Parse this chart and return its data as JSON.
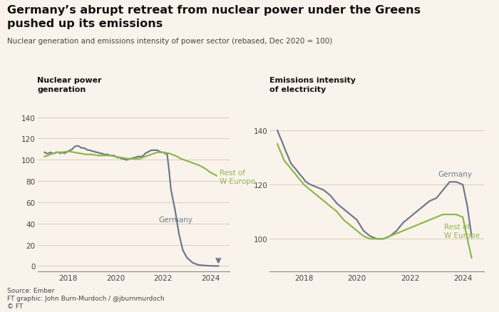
{
  "title_line1": "Germany’s abrupt retreat from nuclear power under the Greens",
  "title_line2": "pushed up its emissions",
  "subtitle": "Nuclear generation and emissions intensity of power sector (rebased, Dec 2020 = 100)",
  "background_color": "#faf3ec",
  "germany_color": "#6b7b8d",
  "europe_color": "#8db84a",
  "left_panel_title": "Nuclear power\ngeneration",
  "right_panel_title": "Emissions intensity\nof electricity",
  "source": "Source: Ember",
  "credit": "FT graphic: John Burn-Murdoch / @jburnmurdoch",
  "copyright": "© FT",
  "ylim_left": [
    -5,
    148
  ],
  "ylim_right": [
    88,
    148
  ],
  "yticks_left": [
    0,
    20,
    40,
    60,
    80,
    100,
    120,
    140
  ],
  "yticks_right": [
    100,
    120,
    140
  ],
  "xticks": [
    2018,
    2020,
    2022,
    2024
  ],
  "left_germany_x": [
    2017.0,
    2017.08,
    2017.17,
    2017.25,
    2017.33,
    2017.42,
    2017.5,
    2017.58,
    2017.67,
    2017.75,
    2017.83,
    2017.92,
    2018.0,
    2018.08,
    2018.17,
    2018.25,
    2018.33,
    2018.42,
    2018.5,
    2018.58,
    2018.67,
    2018.75,
    2018.83,
    2018.92,
    2019.0,
    2019.08,
    2019.17,
    2019.25,
    2019.33,
    2019.42,
    2019.5,
    2019.58,
    2019.67,
    2019.75,
    2019.83,
    2019.92,
    2020.0,
    2020.08,
    2020.17,
    2020.25,
    2020.33,
    2020.42,
    2020.5,
    2020.58,
    2020.67,
    2020.75,
    2020.83,
    2020.92,
    2021.0,
    2021.08,
    2021.17,
    2021.25,
    2021.33,
    2021.42,
    2021.5,
    2021.58,
    2021.67,
    2021.75,
    2021.83,
    2021.92,
    2022.0,
    2022.08,
    2022.17,
    2022.25,
    2022.33,
    2022.5,
    2022.67,
    2022.83,
    2023.0,
    2023.25,
    2023.5,
    2023.75,
    2024.0,
    2024.17,
    2024.33
  ],
  "left_germany_y": [
    107,
    106,
    106,
    107,
    106,
    106,
    107,
    107,
    106,
    107,
    106,
    107,
    108,
    109,
    110,
    112,
    113,
    113,
    112,
    111,
    111,
    110,
    109,
    109,
    108,
    108,
    107,
    107,
    106,
    106,
    105,
    105,
    105,
    104,
    104,
    104,
    103,
    102,
    102,
    101,
    101,
    100,
    100,
    101,
    101,
    102,
    102,
    103,
    103,
    103,
    104,
    106,
    107,
    108,
    109,
    109,
    109,
    109,
    108,
    107,
    107,
    106,
    105,
    90,
    72,
    53,
    30,
    15,
    8,
    3,
    1,
    0.5,
    0.2,
    0.1,
    0
  ],
  "left_europe_x": [
    2017.0,
    2017.25,
    2017.5,
    2017.75,
    2018.0,
    2018.25,
    2018.5,
    2018.75,
    2019.0,
    2019.25,
    2019.5,
    2019.75,
    2020.0,
    2020.25,
    2020.5,
    2020.75,
    2021.0,
    2021.25,
    2021.5,
    2021.75,
    2022.0,
    2022.25,
    2022.5,
    2022.75,
    2023.0,
    2023.25,
    2023.5,
    2023.75,
    2024.0,
    2024.25
  ],
  "left_europe_y": [
    103,
    105,
    107,
    107,
    108,
    107,
    106,
    105,
    105,
    104,
    104,
    104,
    103,
    102,
    101,
    101,
    101,
    103,
    105,
    107,
    107,
    106,
    104,
    101,
    99,
    97,
    95,
    92,
    88,
    85
  ],
  "right_germany_x": [
    2017.0,
    2017.08,
    2017.17,
    2017.25,
    2017.33,
    2017.42,
    2017.5,
    2017.58,
    2017.67,
    2017.75,
    2017.83,
    2017.92,
    2018.0,
    2018.08,
    2018.25,
    2018.5,
    2018.75,
    2019.0,
    2019.25,
    2019.5,
    2019.75,
    2020.0,
    2020.25,
    2020.5,
    2020.75,
    2021.0,
    2021.25,
    2021.5,
    2021.75,
    2022.0,
    2022.25,
    2022.5,
    2022.75,
    2023.0,
    2023.25,
    2023.5,
    2023.75,
    2024.0,
    2024.17,
    2024.33
  ],
  "right_germany_y": [
    140,
    138,
    136,
    134,
    132,
    130,
    128,
    127,
    126,
    125,
    124,
    123,
    122,
    121,
    120,
    119,
    118,
    116,
    113,
    111,
    109,
    107,
    103,
    101,
    100,
    100,
    101,
    103,
    106,
    108,
    110,
    112,
    114,
    115,
    118,
    121,
    121,
    120,
    112,
    101
  ],
  "right_europe_x": [
    2017.0,
    2017.08,
    2017.17,
    2017.25,
    2017.33,
    2017.42,
    2017.5,
    2017.58,
    2017.67,
    2017.75,
    2017.83,
    2017.92,
    2018.0,
    2018.25,
    2018.5,
    2018.75,
    2019.0,
    2019.25,
    2019.5,
    2019.75,
    2020.0,
    2020.25,
    2020.5,
    2020.75,
    2021.0,
    2021.25,
    2021.5,
    2021.75,
    2022.0,
    2022.25,
    2022.5,
    2022.75,
    2023.0,
    2023.25,
    2023.5,
    2023.75,
    2024.0,
    2024.17,
    2024.33
  ],
  "right_europe_y": [
    135,
    133,
    131,
    129,
    128,
    127,
    126,
    125,
    124,
    123,
    122,
    121,
    120,
    118,
    116,
    114,
    112,
    110,
    107,
    105,
    103,
    101,
    100,
    100,
    100,
    101,
    102,
    103,
    104,
    105,
    106,
    107,
    108,
    109,
    109,
    109,
    108,
    100,
    93
  ]
}
